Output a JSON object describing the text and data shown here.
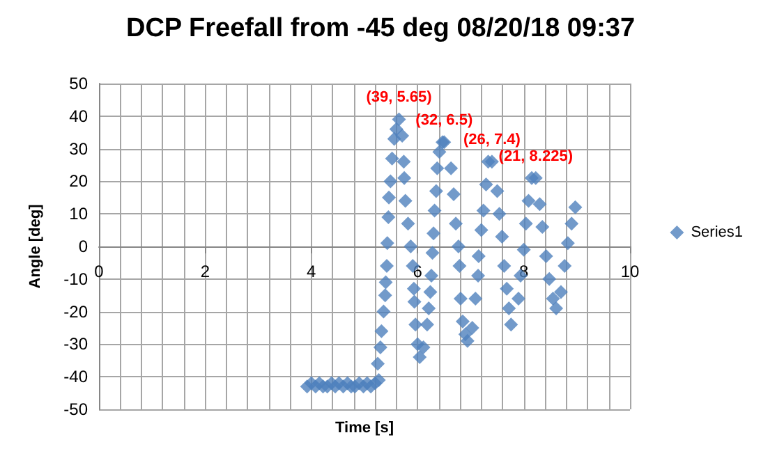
{
  "chart_data": {
    "type": "scatter",
    "title": "DCP Freefall from -45 deg 08/20/18 09:37",
    "xlabel": "Time [s]",
    "ylabel": "Angle [deg]",
    "xlim": [
      0,
      10
    ],
    "xticks": [
      0,
      2,
      4,
      6,
      8,
      10
    ],
    "ylim": [
      -50,
      50
    ],
    "yticks": [
      -50,
      -40,
      -30,
      -20,
      -10,
      0,
      10,
      20,
      30,
      40,
      50
    ],
    "grid": true,
    "legend": "right",
    "marker": "diamond",
    "series": [
      {
        "name": "Series1",
        "color": "#4f81bd",
        "x": [
          3.92,
          4.0,
          4.08,
          4.15,
          4.22,
          4.3,
          4.38,
          4.45,
          4.52,
          4.6,
          4.68,
          4.75,
          4.82,
          4.9,
          4.98,
          5.05,
          5.12,
          5.2,
          5.27,
          5.25,
          5.3,
          5.32,
          5.36,
          5.39,
          5.4,
          5.42,
          5.43,
          5.45,
          5.46,
          5.49,
          5.52,
          5.56,
          5.6,
          5.65,
          5.71,
          5.74,
          5.75,
          5.77,
          5.82,
          5.87,
          5.91,
          5.93,
          5.94,
          5.96,
          6.0,
          6.04,
          6.11,
          6.18,
          6.21,
          6.24,
          6.26,
          6.28,
          6.3,
          6.32,
          6.35,
          6.37,
          6.41,
          6.47,
          6.5,
          6.63,
          6.68,
          6.72,
          6.77,
          6.79,
          6.81,
          6.85,
          6.9,
          6.94,
          7.03,
          7.09,
          7.14,
          7.15,
          7.2,
          7.24,
          7.29,
          7.33,
          7.4,
          7.5,
          7.54,
          7.59,
          7.63,
          7.68,
          7.72,
          7.76,
          7.9,
          7.94,
          8.0,
          8.04,
          8.09,
          8.15,
          8.225,
          8.3,
          8.35,
          8.42,
          8.48,
          8.55,
          8.61,
          8.7,
          8.77,
          8.83,
          8.9,
          8.97
        ],
        "values": [
          -43,
          -42,
          -43,
          -42,
          -43,
          -43,
          -42,
          -43,
          -42,
          -43,
          -42,
          -43,
          -43,
          -42,
          -43,
          -42,
          -43,
          -42,
          -41,
          -36,
          -31,
          -26,
          -20,
          -15,
          -11,
          -6,
          1,
          9,
          15,
          20,
          27,
          33,
          36,
          39,
          34,
          26,
          21,
          14,
          7,
          0,
          -6,
          -13,
          -17,
          -24,
          -30,
          -34,
          -31,
          -24,
          -19,
          -14,
          -9,
          -2,
          4,
          11,
          17,
          24,
          29,
          32,
          32,
          24,
          16,
          7,
          0,
          -6,
          -16,
          -23,
          -27,
          -29,
          -25,
          -16,
          -9,
          -3,
          5,
          11,
          19,
          26,
          26,
          17,
          10,
          3,
          -6,
          -13,
          -19,
          -24,
          -16,
          -9,
          -1,
          7,
          14,
          21,
          21,
          13,
          6,
          -3,
          -10,
          -16,
          -19,
          -14,
          -6,
          1,
          7,
          12
        ]
      }
    ],
    "annotations": [
      {
        "text": "(39, 5.65)",
        "x": 5.65,
        "y": 39
      },
      {
        "text": "(32, 6.5)",
        "x": 6.5,
        "y": 32
      },
      {
        "text": "(26, 7.4)",
        "x": 7.4,
        "y": 26
      },
      {
        "text": "(21, 8.225)",
        "x": 8.225,
        "y": 21
      }
    ]
  }
}
